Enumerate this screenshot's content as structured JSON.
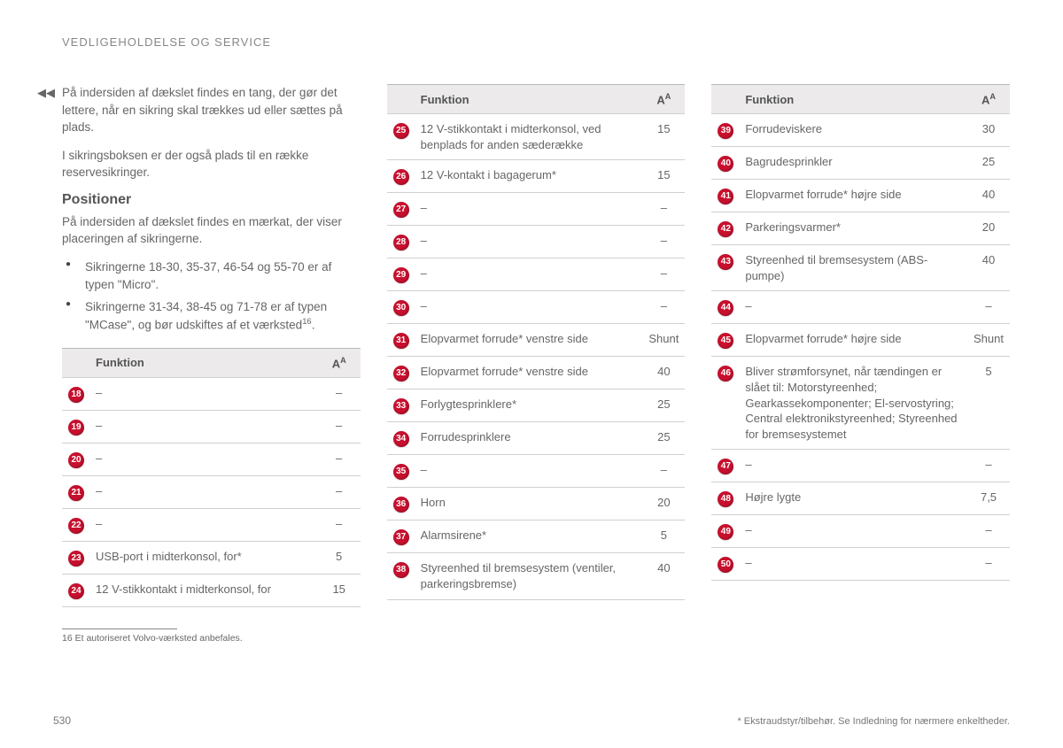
{
  "header": "VEDLIGEHOLDELSE OG SERVICE",
  "pageNumber": "530",
  "disclaimer": "* Ekstraudstyr/tilbehør. Se Indledning for nærmere enkeltheder.",
  "intro": {
    "p1": "På indersiden af dækslet findes en tang, der gør det lettere, når en sikring skal trækkes ud eller sættes på plads.",
    "p2": "I sikringsboksen er der også plads til en række reservesikringer."
  },
  "positions": {
    "title": "Positioner",
    "p1": "På indersiden af dækslet findes en mærkat, der viser placeringen af sikringerne.",
    "b1": "Sikringerne 18-30, 35-37, 46-54 og 55-70 er af typen \"Micro\".",
    "b2": "Sikringerne 31-34, 38-45 og 71-78 er af typen \"MCase\", og bør udskiftes af et værksted"
  },
  "footnote": {
    "num": "16",
    "text": "Et autoriseret Volvo-værksted anbefales."
  },
  "tableHeaders": {
    "funktion": "Funktion",
    "amp": "A",
    "ampSup": "A"
  },
  "colors": {
    "badgeBg": "#c8102e",
    "headerBg": "#eceaea",
    "border": "#d0d0d0",
    "text": "#666666"
  },
  "table1": [
    {
      "n": "18",
      "f": "–",
      "a": "–"
    },
    {
      "n": "19",
      "f": "–",
      "a": "–"
    },
    {
      "n": "20",
      "f": "–",
      "a": "–"
    },
    {
      "n": "21",
      "f": "–",
      "a": "–"
    },
    {
      "n": "22",
      "f": "–",
      "a": "–"
    },
    {
      "n": "23",
      "f": "USB-port i midterkonsol, for*",
      "a": "5"
    },
    {
      "n": "24",
      "f": "12 V-stikkontakt i midterkonsol, for",
      "a": "15"
    }
  ],
  "table2": [
    {
      "n": "25",
      "f": "12 V-stikkontakt i midterkonsol, ved benplads for anden sæderække",
      "a": "15"
    },
    {
      "n": "26",
      "f": "12 V-kontakt i bagagerum*",
      "a": "15"
    },
    {
      "n": "27",
      "f": "–",
      "a": "–"
    },
    {
      "n": "28",
      "f": "–",
      "a": "–"
    },
    {
      "n": "29",
      "f": "–",
      "a": "–"
    },
    {
      "n": "30",
      "f": "–",
      "a": "–"
    },
    {
      "n": "31",
      "f": "Elopvarmet forrude* venstre side",
      "a": "Shunt"
    },
    {
      "n": "32",
      "f": "Elopvarmet forrude* venstre side",
      "a": "40"
    },
    {
      "n": "33",
      "f": "Forlygtesprinklere*",
      "a": "25"
    },
    {
      "n": "34",
      "f": "Forrudesprinklere",
      "a": "25"
    },
    {
      "n": "35",
      "f": "–",
      "a": "–"
    },
    {
      "n": "36",
      "f": "Horn",
      "a": "20"
    },
    {
      "n": "37",
      "f": "Alarmsirene*",
      "a": "5"
    },
    {
      "n": "38",
      "f": "Styreenhed til bremsesystem (ventiler, parkeringsbremse)",
      "a": "40"
    }
  ],
  "table3": [
    {
      "n": "39",
      "f": "Forrudeviskere",
      "a": "30"
    },
    {
      "n": "40",
      "f": "Bagrudesprinkler",
      "a": "25"
    },
    {
      "n": "41",
      "f": "Elopvarmet forrude* højre side",
      "a": "40"
    },
    {
      "n": "42",
      "f": "Parkeringsvarmer*",
      "a": "20"
    },
    {
      "n": "43",
      "f": "Styreenhed til bremsesystem (ABS-pumpe)",
      "a": "40"
    },
    {
      "n": "44",
      "f": "–",
      "a": "–"
    },
    {
      "n": "45",
      "f": "Elopvarmet forrude* højre side",
      "a": "Shunt"
    },
    {
      "n": "46",
      "f": "Bliver strømforsynet, når tændingen er slået til: Motorstyreenhed; Gearkassekomponenter; El-servostyring; Central elektronikstyreenhed; Styreenhed for bremsesystemet",
      "a": "5"
    },
    {
      "n": "47",
      "f": "–",
      "a": "–"
    },
    {
      "n": "48",
      "f": "Højre lygte",
      "a": "7,5"
    },
    {
      "n": "49",
      "f": "–",
      "a": "–"
    },
    {
      "n": "50",
      "f": "–",
      "a": "–"
    }
  ]
}
